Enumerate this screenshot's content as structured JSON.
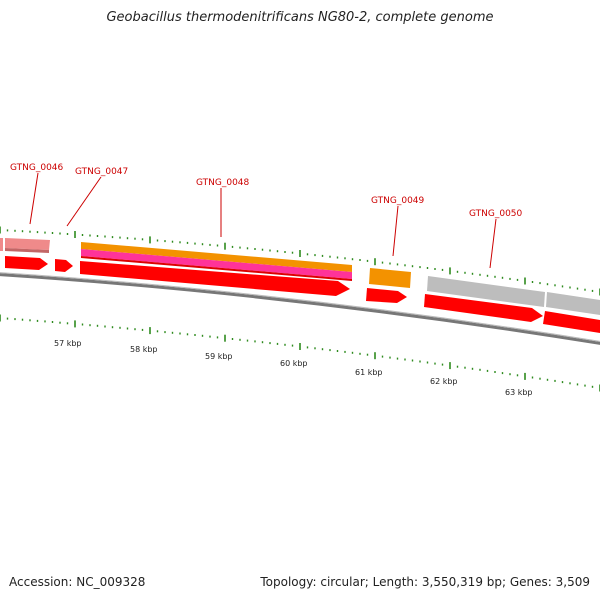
{
  "title": "Geobacillus thermodenitrificans NG80-2, complete genome",
  "accession": "Accession: NC_009328",
  "topology_info": "Topology: circular; Length: 3,550,319 bp; Genes: 3,509",
  "colors": {
    "label": "#cc0000",
    "tick": "#2e8b1e",
    "backbone": "#8a8a8a",
    "cds_red": "#ff0000",
    "cds_pink": "#ee8888",
    "feature_orange": "#f39200",
    "feature_magenta": "#ff3399",
    "feature_gray": "#bbbbbb"
  },
  "gene_labels": [
    "GTNG_0046",
    "GTNG_0047",
    "GTNG_0048",
    "GTNG_0049",
    "GTNG_0050"
  ],
  "kbp_labels": [
    "57 kbp",
    "58 kbp",
    "59 kbp",
    "60 kbp",
    "61 kbp",
    "62 kbp",
    "63 kbp"
  ]
}
